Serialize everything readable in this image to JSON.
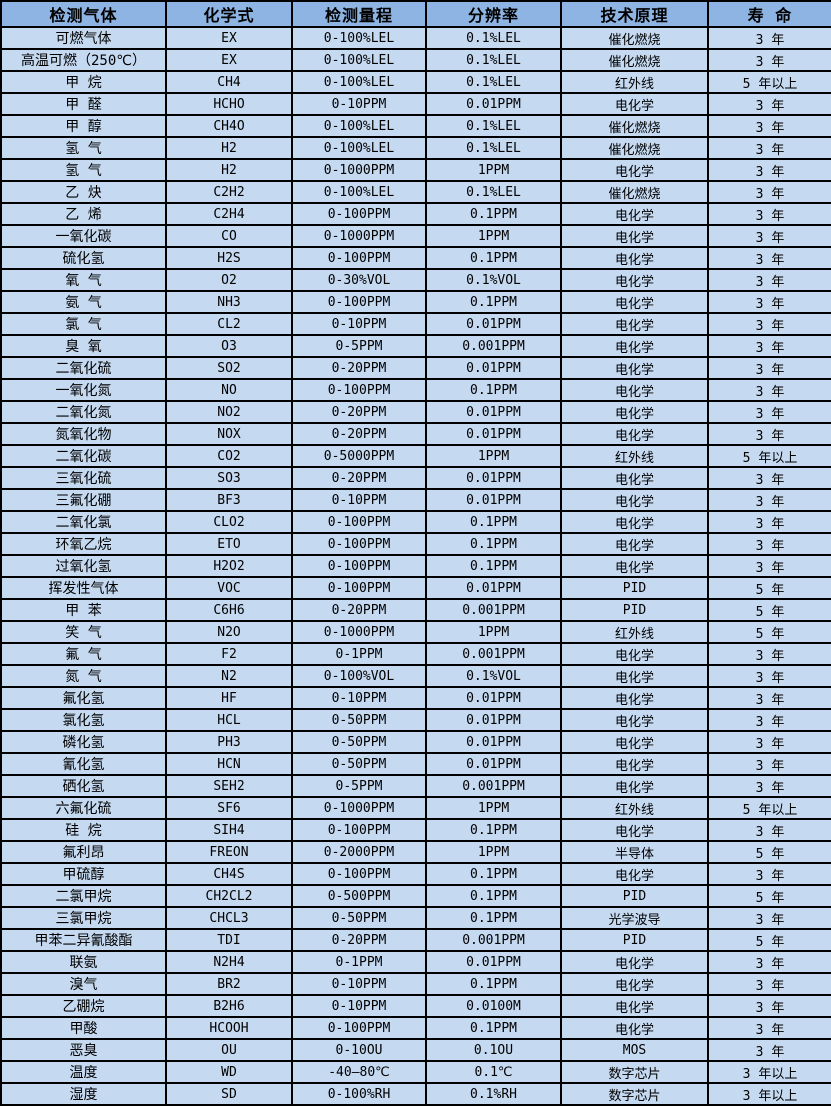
{
  "colors": {
    "header_bg": "#8DB4E2",
    "row_bg": "#C5D9F1",
    "border": "#000000",
    "text": "#000000"
  },
  "table": {
    "columns": [
      "检测气体",
      "化学式",
      "检测量程",
      "分辨率",
      "技术原理",
      "寿 命"
    ],
    "rows": [
      [
        "可燃气体",
        "EX",
        "0-100%LEL",
        "0.1%LEL",
        "催化燃烧",
        "3 年"
      ],
      [
        "高温可燃（250℃）",
        "EX",
        "0-100%LEL",
        "0.1%LEL",
        "催化燃烧",
        "3 年"
      ],
      [
        "甲 烷",
        "CH4",
        "0-100%LEL",
        "0.1%LEL",
        "红外线",
        "5 年以上"
      ],
      [
        "甲 醛",
        "HCHO",
        "0-10PPM",
        "0.01PPM",
        "电化学",
        "3 年"
      ],
      [
        "甲 醇",
        "CH4O",
        "0-100%LEL",
        "0.1%LEL",
        "催化燃烧",
        "3 年"
      ],
      [
        "氢 气",
        "H2",
        "0-100%LEL",
        "0.1%LEL",
        "催化燃烧",
        "3 年"
      ],
      [
        "氢 气",
        "H2",
        "0-1000PPM",
        "1PPM",
        "电化学",
        "3 年"
      ],
      [
        "乙 炔",
        "C2H2",
        "0-100%LEL",
        "0.1%LEL",
        "催化燃烧",
        "3 年"
      ],
      [
        "乙 烯",
        "C2H4",
        "0-100PPM",
        "0.1PPM",
        "电化学",
        "3 年"
      ],
      [
        "一氧化碳",
        "CO",
        "0-1000PPM",
        "1PPM",
        "电化学",
        "3 年"
      ],
      [
        "硫化氢",
        "H2S",
        "0-100PPM",
        "0.1PPM",
        "电化学",
        "3 年"
      ],
      [
        "氧 气",
        "O2",
        "0-30%VOL",
        "0.1%VOL",
        "电化学",
        "3 年"
      ],
      [
        "氨 气",
        "NH3",
        "0-100PPM",
        "0.1PPM",
        "电化学",
        "3 年"
      ],
      [
        "氯 气",
        "CL2",
        "0-10PPM",
        "0.01PPM",
        "电化学",
        "3 年"
      ],
      [
        "臭 氧",
        "O3",
        "0-5PPM",
        "0.001PPM",
        "电化学",
        "3 年"
      ],
      [
        "二氧化硫",
        "SO2",
        "0-20PPM",
        "0.01PPM",
        "电化学",
        "3 年"
      ],
      [
        "一氧化氮",
        "NO",
        "0-100PPM",
        "0.1PPM",
        "电化学",
        "3 年"
      ],
      [
        "二氧化氮",
        "NO2",
        "0-20PPM",
        "0.01PPM",
        "电化学",
        "3 年"
      ],
      [
        "氮氧化物",
        "NOX",
        "0-20PPM",
        "0.01PPM",
        "电化学",
        "3 年"
      ],
      [
        "二氧化碳",
        "CO2",
        "0-5000PPM",
        "1PPM",
        "红外线",
        "5 年以上"
      ],
      [
        "三氧化硫",
        "SO3",
        "0-20PPM",
        "0.01PPM",
        "电化学",
        "3 年"
      ],
      [
        "三氟化硼",
        "BF3",
        "0-10PPM",
        "0.01PPM",
        "电化学",
        "3 年"
      ],
      [
        "二氧化氯",
        "CLO2",
        "0-100PPM",
        "0.1PPM",
        "电化学",
        "3 年"
      ],
      [
        "环氧乙烷",
        "ETO",
        "0-100PPM",
        "0.1PPM",
        "电化学",
        "3 年"
      ],
      [
        "过氧化氢",
        "H2O2",
        "0-100PPM",
        "0.1PPM",
        "电化学",
        "3 年"
      ],
      [
        "挥发性气体",
        "VOC",
        "0-100PPM",
        "0.01PPM",
        "PID",
        "5 年"
      ],
      [
        "甲 苯",
        "C6H6",
        "0-20PPM",
        "0.001PPM",
        "PID",
        "5 年"
      ],
      [
        "笑 气",
        "N2O",
        "0-1000PPM",
        "1PPM",
        "红外线",
        "5 年"
      ],
      [
        "氟 气",
        "F2",
        "0-1PPM",
        "0.001PPM",
        "电化学",
        "3 年"
      ],
      [
        "氮 气",
        "N2",
        "0-100%VOL",
        "0.1%VOL",
        "电化学",
        "3 年"
      ],
      [
        "氟化氢",
        "HF",
        "0-10PPM",
        "0.01PPM",
        "电化学",
        "3 年"
      ],
      [
        "氯化氢",
        "HCL",
        "0-50PPM",
        "0.01PPM",
        "电化学",
        "3 年"
      ],
      [
        "磷化氢",
        "PH3",
        "0-50PPM",
        "0.01PPM",
        "电化学",
        "3 年"
      ],
      [
        "氰化氢",
        "HCN",
        "0-50PPM",
        "0.01PPM",
        "电化学",
        "3 年"
      ],
      [
        "硒化氢",
        "SEH2",
        "0-5PPM",
        "0.001PPM",
        "电化学",
        "3 年"
      ],
      [
        "六氟化硫",
        "SF6",
        "0-1000PPM",
        "1PPM",
        "红外线",
        "5 年以上"
      ],
      [
        "硅 烷",
        "SIH4",
        "0-100PPM",
        "0.1PPM",
        "电化学",
        "3 年"
      ],
      [
        "氟利昂",
        "FREON",
        "0-2000PPM",
        "1PPM",
        "半导体",
        "5 年"
      ],
      [
        "甲硫醇",
        "CH4S",
        "0-100PPM",
        "0.1PPM",
        "电化学",
        "3 年"
      ],
      [
        "二氯甲烷",
        "CH2CL2",
        "0-500PPM",
        "0.1PPM",
        "PID",
        "5 年"
      ],
      [
        "三氯甲烷",
        "CHCL3",
        "0-50PPM",
        "0.1PPM",
        "光学波导",
        "3 年"
      ],
      [
        "甲苯二异氰酸酯",
        "TDI",
        "0-20PPM",
        "0.001PPM",
        "PID",
        "5 年"
      ],
      [
        "联氨",
        "N2H4",
        "0-1PPM",
        "0.01PPM",
        "电化学",
        "3 年"
      ],
      [
        "溴气",
        "BR2",
        "0-10PPM",
        "0.1PPM",
        "电化学",
        "3 年"
      ],
      [
        "乙硼烷",
        "B2H6",
        "0-10PPM",
        "0.0100M",
        "电化学",
        "3 年"
      ],
      [
        "甲酸",
        "HCOOH",
        "0-100PPM",
        "0.1PPM",
        "电化学",
        "3 年"
      ],
      [
        "恶臭",
        "OU",
        "0-10OU",
        "0.1OU",
        "MOS",
        "3 年"
      ],
      [
        "温度",
        "WD",
        "-40—80℃",
        "0.1℃",
        "数字芯片",
        "3 年以上"
      ],
      [
        "湿度",
        "SD",
        "0-100%RH",
        "0.1%RH",
        "数字芯片",
        "3 年以上"
      ]
    ]
  }
}
